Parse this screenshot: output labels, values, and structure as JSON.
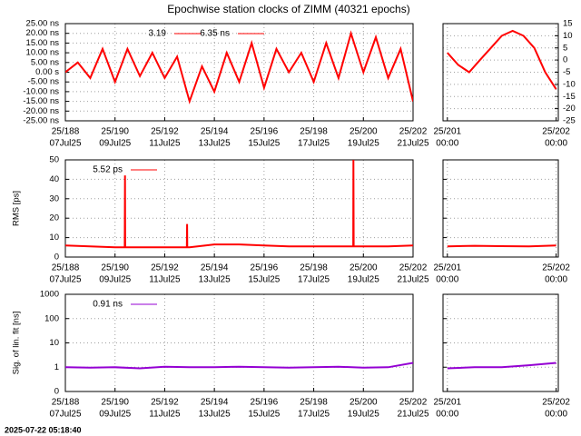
{
  "title": "Epochwise station clocks of ZIMM (40321 epochs)",
  "timestamp": "2025-07-22 05:18:40",
  "chart_data": [
    {
      "type": "line",
      "color": "#ff0000",
      "key": [
        "3.19",
        "6.35 ns"
      ],
      "x": [
        188,
        188.5,
        189,
        189.5,
        190,
        190.5,
        191,
        191.5,
        192,
        192.5,
        193,
        193.5,
        194,
        194.5,
        195,
        195.5,
        196,
        196.5,
        197,
        197.5,
        198,
        198.5,
        199,
        199.5,
        200,
        200.5,
        201,
        201.5,
        202
      ],
      "values": [
        0,
        5,
        -3,
        12,
        -5,
        12,
        -2,
        10,
        -3,
        8,
        -15,
        3,
        -10,
        10,
        -5,
        15,
        -8,
        12,
        0,
        10,
        -5,
        15,
        -3,
        20,
        0,
        18,
        -3,
        12,
        -15
      ],
      "xlim": [
        188,
        202
      ],
      "xticks": [
        {
          "value": 188,
          "label": "25/188",
          "date": "07Jul25"
        },
        {
          "value": 190,
          "label": "25/190",
          "date": "09Jul25"
        },
        {
          "value": 192,
          "label": "25/192",
          "date": "11Jul25"
        },
        {
          "value": 194,
          "label": "25/194",
          "date": "13Jul25"
        },
        {
          "value": 196,
          "label": "25/196",
          "date": "15Jul25"
        },
        {
          "value": 198,
          "label": "25/198",
          "date": "17Jul25"
        },
        {
          "value": 200,
          "label": "25/200",
          "date": "19Jul25"
        },
        {
          "value": 202,
          "label": "25/202",
          "date": "21Jul25"
        }
      ],
      "ylim": [
        -25,
        25
      ],
      "yticks": [
        {
          "value": 25,
          "label": "25.00 ns"
        },
        {
          "value": 20,
          "label": "20.00 ns"
        },
        {
          "value": 15,
          "label": "15.00 ns"
        },
        {
          "value": 10,
          "label": "10.00 ns"
        },
        {
          "value": 5,
          "label": "5.00 ns"
        },
        {
          "value": 0,
          "label": "0.00  s"
        },
        {
          "value": -5,
          "label": "-5.00 ns"
        },
        {
          "value": -10,
          "label": "-10.00 ns"
        },
        {
          "value": -15,
          "label": "-15.00 ns"
        },
        {
          "value": -20,
          "label": "-20.00 ns"
        },
        {
          "value": -25,
          "label": "-25.00 ns"
        }
      ],
      "yaxis_side": "left",
      "show_ytick_labels": true,
      "log": false,
      "grid": true
    },
    {
      "type": "line",
      "color": "#ff0000",
      "x": [
        201,
        201.1,
        201.2,
        201.3,
        201.4,
        201.5,
        201.6,
        201.7,
        201.8,
        201.9,
        202
      ],
      "values": [
        3,
        -2,
        -5,
        0,
        5,
        10,
        12,
        10,
        5,
        -5,
        -12
      ],
      "xlim": [
        200.96,
        202.02
      ],
      "xticks": [
        {
          "value": 201,
          "label": "25/201",
          "date": "00:00"
        },
        {
          "value": 202,
          "label": "25/202",
          "date": "00:00"
        }
      ],
      "ylim": [
        -25,
        15
      ],
      "yticks": [
        15,
        10,
        5,
        0,
        -5,
        -10,
        -15,
        -20,
        -25
      ],
      "yaxis_side": "right",
      "show_ytick_labels": true,
      "log": false,
      "grid": true
    },
    {
      "type": "line",
      "color": "#ff0000",
      "ylabel": "RMS [ps]",
      "key": [
        "5.52 ps"
      ],
      "x": [
        188,
        189,
        190,
        190.39,
        190.4,
        190.41,
        191,
        192,
        192.89,
        192.9,
        192.91,
        193,
        194,
        195,
        196,
        197,
        198,
        199,
        199.59,
        199.6,
        199.61,
        200,
        201,
        202
      ],
      "values": [
        6,
        5.5,
        5,
        5,
        42,
        5,
        5,
        5,
        5,
        17,
        5,
        5,
        6.5,
        6.5,
        6,
        5.5,
        5.5,
        5.5,
        5.5,
        50,
        5.5,
        5.5,
        5.5,
        6
      ],
      "xlim": [
        188,
        202
      ],
      "xticks": [
        {
          "value": 188,
          "label": "25/188",
          "date": "07Jul25"
        },
        {
          "value": 190,
          "label": "25/190",
          "date": "09Jul25"
        },
        {
          "value": 192,
          "label": "25/192",
          "date": "11Jul25"
        },
        {
          "value": 194,
          "label": "25/194",
          "date": "13Jul25"
        },
        {
          "value": 196,
          "label": "25/196",
          "date": "15Jul25"
        },
        {
          "value": 198,
          "label": "25/198",
          "date": "17Jul25"
        },
        {
          "value": 200,
          "label": "25/200",
          "date": "19Jul25"
        },
        {
          "value": 202,
          "label": "25/202",
          "date": "21Jul25"
        }
      ],
      "ylim": [
        0,
        50
      ],
      "yticks": [
        0,
        10,
        20,
        30,
        40,
        50
      ],
      "yaxis_side": "left",
      "show_ytick_labels": true,
      "log": false,
      "grid": true
    },
    {
      "type": "line",
      "color": "#ff0000",
      "x": [
        201,
        201.25,
        201.5,
        201.75,
        202
      ],
      "values": [
        5.5,
        5.8,
        5.6,
        5.5,
        6
      ],
      "xlim": [
        200.96,
        202.02
      ],
      "xticks": [
        {
          "value": 201,
          "label": "25/201",
          "date": "00:00"
        },
        {
          "value": 202,
          "label": "25/202",
          "date": "00:00"
        }
      ],
      "ylim": [
        0,
        50
      ],
      "yticks": [
        0,
        10,
        20,
        30,
        40,
        50
      ],
      "yaxis_side": "left",
      "show_ytick_labels": false,
      "log": false,
      "grid": true
    },
    {
      "type": "line",
      "color": "#9400d3",
      "ylabel": "Sig. of lin. fit [ns]",
      "key": [
        "0.91 ns"
      ],
      "x": [
        188,
        189,
        190,
        191,
        192,
        193,
        194,
        195,
        196,
        197,
        198,
        199,
        200,
        201,
        202
      ],
      "values": [
        1,
        0.95,
        1,
        0.9,
        1.05,
        1,
        1,
        1.05,
        1,
        0.95,
        1,
        1.05,
        0.95,
        1,
        1.5
      ],
      "xlim": [
        188,
        202
      ],
      "xticks": [
        {
          "value": 188,
          "label": "25/188",
          "date": "07Jul25"
        },
        {
          "value": 190,
          "label": "25/190",
          "date": "09Jul25"
        },
        {
          "value": 192,
          "label": "25/192",
          "date": "11Jul25"
        },
        {
          "value": 194,
          "label": "25/194",
          "date": "13Jul25"
        },
        {
          "value": 196,
          "label": "25/196",
          "date": "15Jul25"
        },
        {
          "value": 198,
          "label": "25/198",
          "date": "17Jul25"
        },
        {
          "value": 200,
          "label": "25/200",
          "date": "19Jul25"
        },
        {
          "value": 202,
          "label": "25/202",
          "date": "21Jul25"
        }
      ],
      "ylim": [
        0.1,
        1000
      ],
      "yticks": [
        {
          "value": 0.1,
          "label": "0"
        },
        1,
        10,
        100,
        1000
      ],
      "yaxis_side": "left",
      "show_ytick_labels": true,
      "log": true,
      "grid": true
    },
    {
      "type": "line",
      "color": "#9400d3",
      "x": [
        201,
        201.25,
        201.5,
        201.75,
        202
      ],
      "values": [
        0.9,
        1,
        1,
        1.2,
        1.5
      ],
      "xlim": [
        200.96,
        202.02
      ],
      "xticks": [
        {
          "value": 201,
          "label": "25/201",
          "date": "00:00"
        },
        {
          "value": 202,
          "label": "25/202",
          "date": "00:00"
        }
      ],
      "ylim": [
        0.1,
        1000
      ],
      "yticks": [
        0.1,
        1,
        10,
        100,
        1000
      ],
      "yaxis_side": "left",
      "show_ytick_labels": false,
      "log": true,
      "grid": true
    }
  ]
}
